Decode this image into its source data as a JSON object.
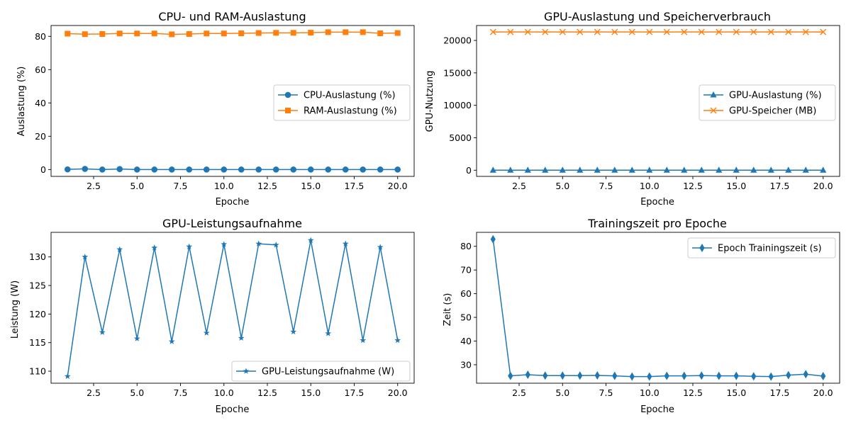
{
  "colors": {
    "blue": "#1f77b4",
    "orange": "#ff7f0e"
  },
  "chart_data": [
    {
      "id": "p1",
      "type": "line",
      "title": "CPU- und RAM-Auslastung",
      "xlabel": "Epoche",
      "ylabel": "Auslastung (%)",
      "xlim": [
        0.05,
        20.95
      ],
      "ylim": [
        -4.1,
        86.5
      ],
      "xticks": [
        2.5,
        5.0,
        7.5,
        10.0,
        12.5,
        15.0,
        17.5,
        20.0
      ],
      "xtick_labels": [
        "2.5",
        "5.0",
        "7.5",
        "10.0",
        "12.5",
        "15.0",
        "17.5",
        "20.0"
      ],
      "yticks": [
        0,
        20,
        40,
        60,
        80
      ],
      "ytick_labels": [
        "0",
        "20",
        "40",
        "60",
        "80"
      ],
      "legend_position": "center-right",
      "x": [
        1,
        2,
        3,
        4,
        5,
        6,
        7,
        8,
        9,
        10,
        11,
        12,
        13,
        14,
        15,
        16,
        17,
        18,
        19,
        20
      ],
      "series": [
        {
          "name": "CPU-Auslastung (%)",
          "color": "#1f77b4",
          "marker": "circle",
          "values": [
            0.1,
            0.4,
            0.0,
            0.3,
            0.0,
            0.0,
            0.0,
            0.0,
            0.0,
            0.0,
            0.0,
            0.0,
            0.0,
            0.0,
            0.0,
            0.0,
            0.0,
            0.0,
            0.0,
            0.0
          ]
        },
        {
          "name": "RAM-Auslastung (%)",
          "color": "#ff7f0e",
          "marker": "square",
          "values": [
            81.6,
            81.3,
            81.4,
            81.7,
            81.7,
            81.7,
            81.2,
            81.4,
            81.7,
            81.7,
            81.8,
            82.0,
            82.1,
            82.1,
            82.2,
            82.5,
            82.5,
            82.5,
            81.8,
            82.0
          ]
        }
      ]
    },
    {
      "id": "p2",
      "type": "line",
      "title": "GPU-Auslastung und Speicherverbrauch",
      "xlabel": "Epoche",
      "ylabel": "GPU-Nutzung",
      "xlim": [
        0.05,
        20.95
      ],
      "ylim": [
        -950,
        22300
      ],
      "xticks": [
        2.5,
        5.0,
        7.5,
        10.0,
        12.5,
        15.0,
        17.5,
        20.0
      ],
      "xtick_labels": [
        "2.5",
        "5.0",
        "7.5",
        "10.0",
        "12.5",
        "15.0",
        "17.5",
        "20.0"
      ],
      "yticks": [
        0,
        5000,
        10000,
        15000,
        20000
      ],
      "ytick_labels": [
        "0",
        "5000",
        "10000",
        "15000",
        "20000"
      ],
      "legend_position": "center-right",
      "x": [
        1,
        2,
        3,
        4,
        5,
        6,
        7,
        8,
        9,
        10,
        11,
        12,
        13,
        14,
        15,
        16,
        17,
        18,
        19,
        20
      ],
      "series": [
        {
          "name": "GPU-Auslastung (%)",
          "color": "#1f77b4",
          "marker": "triangle",
          "values": [
            0,
            0,
            0,
            0,
            0,
            0,
            0,
            0,
            0,
            0,
            0,
            0,
            0,
            0,
            0,
            0,
            0,
            0,
            0,
            0
          ]
        },
        {
          "name": "GPU-Speicher (MB)",
          "color": "#ff7f0e",
          "marker": "x",
          "values": [
            21300,
            21300,
            21300,
            21300,
            21300,
            21300,
            21300,
            21300,
            21300,
            21300,
            21300,
            21300,
            21300,
            21300,
            21300,
            21300,
            21300,
            21300,
            21300,
            21300
          ]
        }
      ]
    },
    {
      "id": "p3",
      "type": "line",
      "title": "GPU-Leistungsaufnahme",
      "xlabel": "Epoche",
      "ylabel": "Leistung (W)",
      "xlim": [
        0.05,
        20.95
      ],
      "ylim": [
        107.9,
        134.3
      ],
      "xticks": [
        2.5,
        5.0,
        7.5,
        10.0,
        12.5,
        15.0,
        17.5,
        20.0
      ],
      "xtick_labels": [
        "2.5",
        "5.0",
        "7.5",
        "10.0",
        "12.5",
        "15.0",
        "17.5",
        "20.0"
      ],
      "yticks": [
        110,
        115,
        120,
        125,
        130
      ],
      "ytick_labels": [
        "110",
        "115",
        "120",
        "125",
        "130"
      ],
      "legend_position": "lower-right",
      "x": [
        1,
        2,
        3,
        4,
        5,
        6,
        7,
        8,
        9,
        10,
        11,
        12,
        13,
        14,
        15,
        16,
        17,
        18,
        19,
        20
      ],
      "series": [
        {
          "name": "GPU-Leistungsaufnahme (W)",
          "color": "#1f77b4",
          "marker": "star",
          "values": [
            109.1,
            130.0,
            116.8,
            131.3,
            115.7,
            131.6,
            115.2,
            131.8,
            116.7,
            132.2,
            115.8,
            132.3,
            132.1,
            116.9,
            132.9,
            116.6,
            132.3,
            115.4,
            131.7,
            115.4
          ]
        }
      ]
    },
    {
      "id": "p4",
      "type": "line",
      "title": "Trainingszeit pro Epoche",
      "xlabel": "Epoche",
      "ylabel": "Zeit (s)",
      "xlim": [
        0.05,
        20.95
      ],
      "ylim": [
        22.2,
        85.9
      ],
      "xticks": [
        2.5,
        5.0,
        7.5,
        10.0,
        12.5,
        15.0,
        17.5,
        20.0
      ],
      "xtick_labels": [
        "2.5",
        "5.0",
        "7.5",
        "10.0",
        "12.5",
        "15.0",
        "17.5",
        "20.0"
      ],
      "yticks": [
        30,
        40,
        50,
        60,
        70,
        80
      ],
      "ytick_labels": [
        "30",
        "40",
        "50",
        "60",
        "70",
        "80"
      ],
      "legend_position": "upper-right",
      "x": [
        1,
        2,
        3,
        4,
        5,
        6,
        7,
        8,
        9,
        10,
        11,
        12,
        13,
        14,
        15,
        16,
        17,
        18,
        19,
        20
      ],
      "series": [
        {
          "name": "Epoch Trainingszeit (s)",
          "color": "#1f77b4",
          "marker": "diamond",
          "values": [
            83.0,
            25.3,
            25.8,
            25.4,
            25.4,
            25.4,
            25.5,
            25.3,
            25.0,
            25.0,
            25.3,
            25.3,
            25.4,
            25.3,
            25.3,
            25.1,
            25.0,
            25.6,
            26.0,
            25.2
          ]
        }
      ]
    }
  ]
}
